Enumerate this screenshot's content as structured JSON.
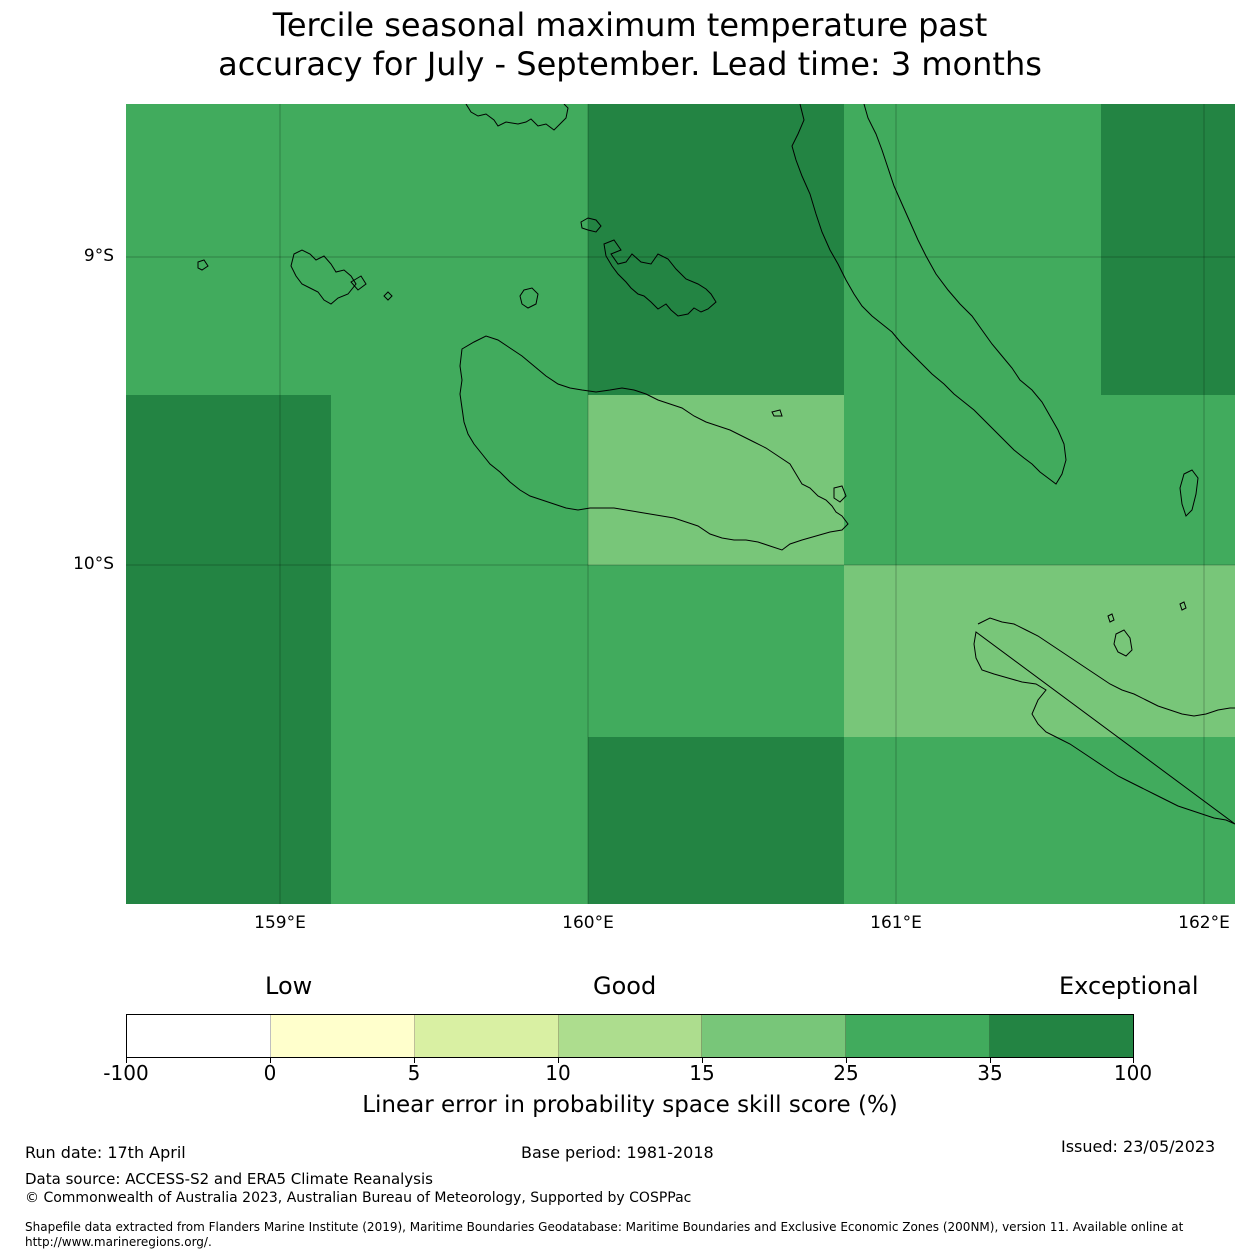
{
  "title_line1": "Tercile seasonal maximum temperature past",
  "title_line2": "accuracy for July - September. Lead time: 3 months",
  "lat_labels": [
    "9°S",
    "10°S"
  ],
  "lon_labels": [
    "159°E",
    "160°E",
    "161°E",
    "162°E"
  ],
  "colorbar": {
    "categories": [
      "Low",
      "Good",
      "Exceptional"
    ],
    "ticks": [
      "-100",
      "0",
      "5",
      "10",
      "15",
      "25",
      "35",
      "100"
    ],
    "colors": [
      "#ffffff",
      "#ffffcc",
      "#d9f0a3",
      "#addd8e",
      "#78c679",
      "#41ab5d",
      "#238443"
    ],
    "label": "Linear error in probability space skill score (%)"
  },
  "grid_cells": {
    "columns": [
      "158.5-159.17",
      "159.17-160.0",
      "160.0-160.83",
      "160.83-161.67",
      "161.67-162.1"
    ],
    "rows": [
      [
        "#41ab5d",
        "#41ab5d",
        "#238443",
        "#41ab5d",
        "#238443"
      ],
      [
        "#238443",
        "#41ab5d",
        "#78c679",
        "#41ab5d",
        "#41ab5d"
      ],
      [
        "#238443",
        "#41ab5d",
        "#41ab5d",
        "#78c679",
        "#78c679"
      ],
      [
        "#238443",
        "#41ab5d",
        "#238443",
        "#41ab5d",
        "#41ab5d"
      ]
    ]
  },
  "footer": {
    "run_date": "Run date: 17th April",
    "base_period": "Base period: 1981-2018",
    "issued": "Issued: 23/05/2023",
    "data_source": "Data source: ACCESS-S2 and ERA5 Climate Reanalysis",
    "copyright": "© Commonwealth of Australia 2023, Australian Bureau of Meteorology, Supported by COSPPac",
    "shapefile": "Shapefile data extracted from Flanders Marine Institute (2019), Maritime Boundaries Geodatabase: Maritime Boundaries and Exclusive Economic Zones (200NM), version 11. Available online at http://www.marineregions.org/."
  }
}
